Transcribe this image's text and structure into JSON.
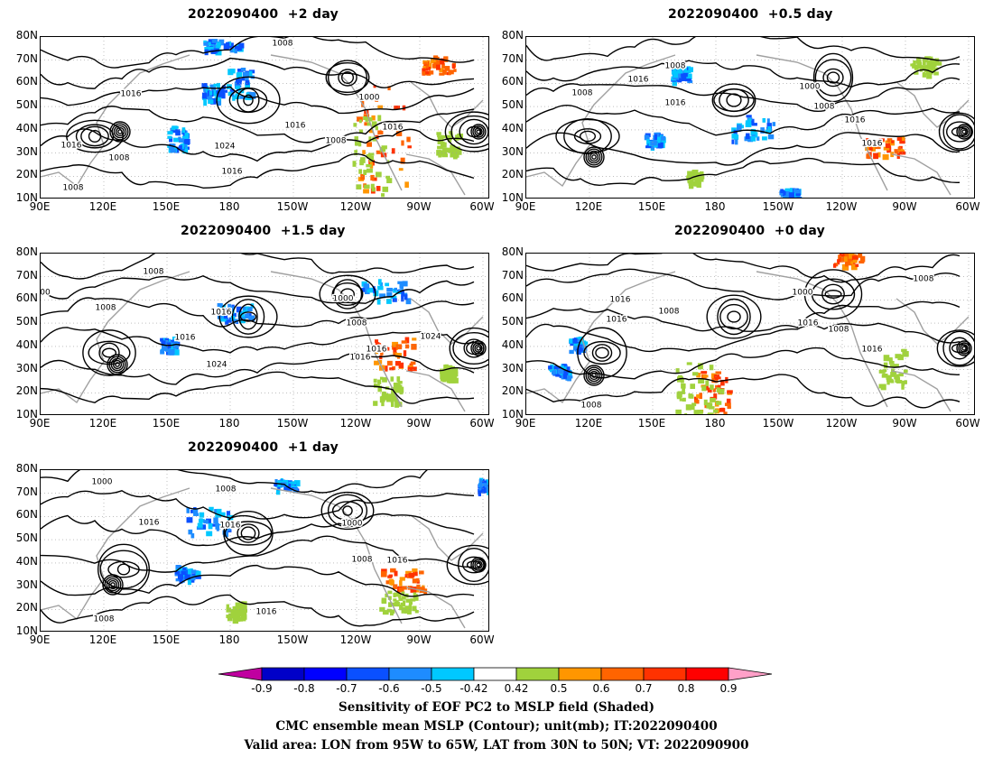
{
  "panels": [
    {
      "title": "2022090400  +2 day"
    },
    {
      "title": "2022090400  +0.5 day"
    },
    {
      "title": "2022090400  +1.5 day"
    },
    {
      "title": "2022090400  +0 day"
    },
    {
      "title": "2022090400  +1 day"
    }
  ],
  "lat_ticks": [
    "80N",
    "70N",
    "60N",
    "50N",
    "40N",
    "30N",
    "20N",
    "10N"
  ],
  "lon_ticks": [
    "90E",
    "120E",
    "150E",
    "180",
    "150W",
    "120W",
    "90W",
    "60W"
  ],
  "contour_labels": {
    "p0": [
      "1008",
      "1016",
      "1000",
      "1016",
      "1016",
      "1008",
      "1024",
      "1016",
      "1008",
      "1016",
      "1008"
    ],
    "p1": [
      "1008",
      "1008",
      "1016",
      "1000",
      "1008",
      "1016",
      "1016",
      "1016"
    ],
    "p2": [
      "1008",
      "1008",
      "1000",
      "1016",
      "1016",
      "1008",
      "1024",
      "1016",
      "1024",
      "1016",
      "00"
    ],
    "p3": [
      "1016",
      "1016",
      "1000",
      "1008",
      "1016",
      "1008",
      "1016",
      "1008",
      "1008"
    ],
    "p4": [
      "1000",
      "1008",
      "1016",
      "1016",
      "1000",
      "1008",
      "1016",
      "1016",
      "1008"
    ]
  },
  "colorbar": {
    "levels": [
      "-0.9",
      "-0.8",
      "-0.7",
      "-0.6",
      "-0.5",
      "-0.42",
      "0.42",
      "0.5",
      "0.6",
      "0.7",
      "0.8",
      "0.9"
    ],
    "colors": [
      "#c000a0",
      "#0000c8",
      "#0000ff",
      "#0a50ff",
      "#1e8cff",
      "#00c8ff",
      "#ffffff",
      "#a0d23c",
      "#ff9600",
      "#ff6400",
      "#ff3200",
      "#ff0000",
      "#ffa0c8"
    ]
  },
  "captions": [
    "Sensitivity of EOF PC2 to MSLP field (Shaded)",
    "CMC ensemble mean MSLP (Contour); unit(mb); IT:2022090400",
    "Valid area: LON from 95W to 65W, LAT from 30N to 50N; VT: 2022090900"
  ]
}
